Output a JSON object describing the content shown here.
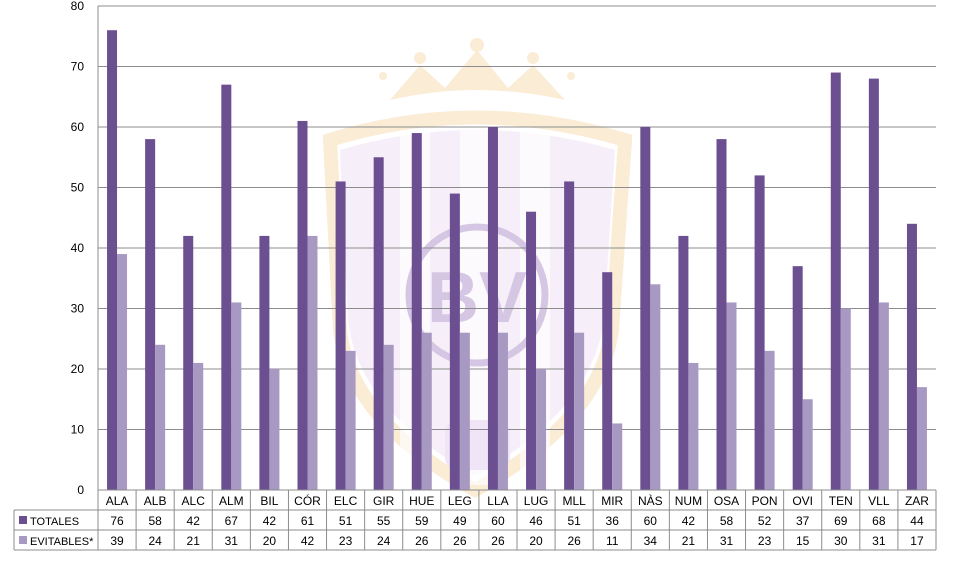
{
  "chart_data": {
    "type": "bar",
    "categories": [
      "ALA",
      "ALB",
      "ALC",
      "ALM",
      "BIL",
      "CÓR",
      "ELC",
      "GIR",
      "HUE",
      "LEG",
      "LLA",
      "LUG",
      "MLL",
      "MIR",
      "NÀS",
      "NUM",
      "OSA",
      "PON",
      "OVI",
      "TEN",
      "VLL",
      "ZAR"
    ],
    "series": [
      {
        "name": "TOTALES",
        "color": "#6b4f91",
        "values": [
          76,
          58,
          42,
          67,
          42,
          61,
          51,
          55,
          59,
          49,
          60,
          46,
          51,
          36,
          60,
          42,
          58,
          52,
          37,
          69,
          68,
          44
        ]
      },
      {
        "name": "EVITABLES*",
        "color": "#a899c2",
        "values": [
          39,
          24,
          21,
          31,
          20,
          42,
          23,
          24,
          26,
          26,
          26,
          20,
          26,
          11,
          34,
          21,
          31,
          23,
          15,
          30,
          31,
          17
        ]
      }
    ],
    "ylim": [
      0,
      80
    ],
    "yticks": [
      0,
      10,
      20,
      30,
      40,
      50,
      60,
      70,
      80
    ],
    "grid": true,
    "legend": "data table below chart",
    "watermark": "BV"
  }
}
